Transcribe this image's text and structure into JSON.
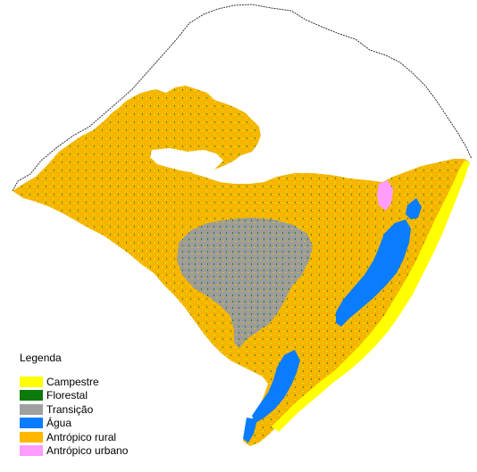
{
  "legend": {
    "title": "Legenda",
    "items": [
      {
        "label": "Campestre",
        "color": "#ffff00"
      },
      {
        "label": "Florestal",
        "color": "#0a7a0a"
      },
      {
        "label": "Transição",
        "color": "#a0a0a0"
      },
      {
        "label": "Água",
        "color": "#0a7cff"
      },
      {
        "label": "Antrópico rural",
        "color": "#ffb800"
      },
      {
        "label": "Antrópico urbano",
        "color": "#ff9cff"
      }
    ]
  }
}
